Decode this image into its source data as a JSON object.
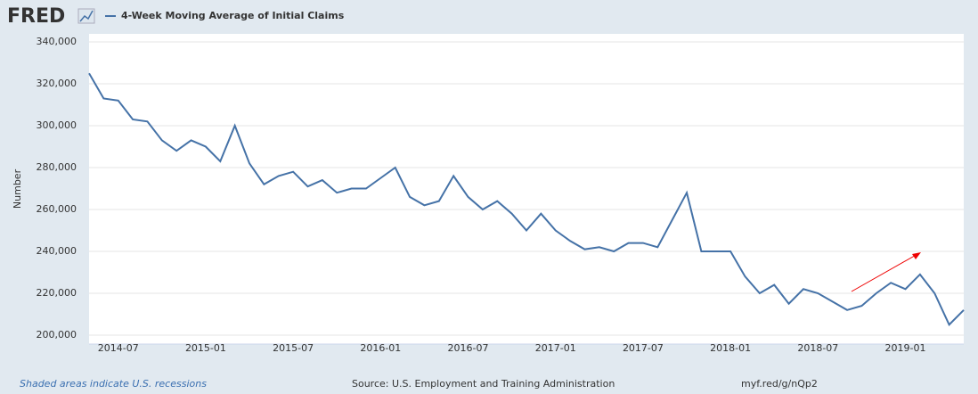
{
  "brand": "FRED",
  "chart_data": {
    "type": "line",
    "ylabel": "Number",
    "x": [
      "2014-05",
      "2014-06",
      "2014-07",
      "2014-08",
      "2014-09",
      "2014-10",
      "2014-11",
      "2014-12",
      "2015-01",
      "2015-02",
      "2015-03",
      "2015-04",
      "2015-05",
      "2015-06",
      "2015-07",
      "2015-08",
      "2015-09",
      "2015-10",
      "2015-11",
      "2015-12",
      "2016-01",
      "2016-02",
      "2016-03",
      "2016-04",
      "2016-05",
      "2016-06",
      "2016-07",
      "2016-08",
      "2016-09",
      "2016-10",
      "2016-11",
      "2016-12",
      "2017-01",
      "2017-02",
      "2017-03",
      "2017-04",
      "2017-05",
      "2017-06",
      "2017-07",
      "2017-08",
      "2017-09",
      "2017-10",
      "2017-11",
      "2017-12",
      "2018-01",
      "2018-02",
      "2018-03",
      "2018-04",
      "2018-05",
      "2018-06",
      "2018-07",
      "2018-08",
      "2018-09",
      "2018-10",
      "2018-11",
      "2018-12",
      "2019-01",
      "2019-02",
      "2019-03",
      "2019-04",
      "2019-05"
    ],
    "series": [
      {
        "name": "4-Week Moving Average of Initial Claims",
        "color": "#4572a7",
        "values": [
          325000,
          313000,
          312000,
          303000,
          302000,
          293000,
          288000,
          293000,
          290000,
          283000,
          300000,
          282000,
          272000,
          276000,
          278000,
          271000,
          274000,
          268000,
          270000,
          270000,
          275000,
          280000,
          266000,
          262000,
          264000,
          276000,
          266000,
          260000,
          264000,
          258000,
          250000,
          258000,
          250000,
          245000,
          241000,
          242000,
          240000,
          244000,
          244000,
          242000,
          255000,
          268000,
          240000,
          240000,
          240000,
          228000,
          220000,
          224000,
          215000,
          222000,
          220000,
          216000,
          212000,
          214000,
          220000,
          225000,
          222000,
          229000,
          220000,
          205000,
          212000
        ]
      }
    ],
    "xlim": [
      "2014-05",
      "2019-05"
    ],
    "xticks": [
      "2014-07",
      "2015-01",
      "2015-07",
      "2016-01",
      "2016-07",
      "2017-01",
      "2017-07",
      "2018-01",
      "2018-07",
      "2019-01"
    ],
    "ylim": [
      200000,
      340000
    ],
    "yticks": [
      {
        "value": 200000,
        "label": "200,000"
      },
      {
        "value": 220000,
        "label": "220,000"
      },
      {
        "value": 240000,
        "label": "240,000"
      },
      {
        "value": 260000,
        "label": "260,000"
      },
      {
        "value": 280000,
        "label": "280,000"
      },
      {
        "value": 300000,
        "label": "300,000"
      },
      {
        "value": 320000,
        "label": "320,000"
      },
      {
        "value": 340000,
        "label": "340,000"
      }
    ],
    "grid": true
  },
  "footer": {
    "recession_note": "Shaded areas indicate U.S. recessions",
    "source": "Source: U.S. Employment and Training Administration",
    "url": "myf.red/g/nQp2"
  }
}
